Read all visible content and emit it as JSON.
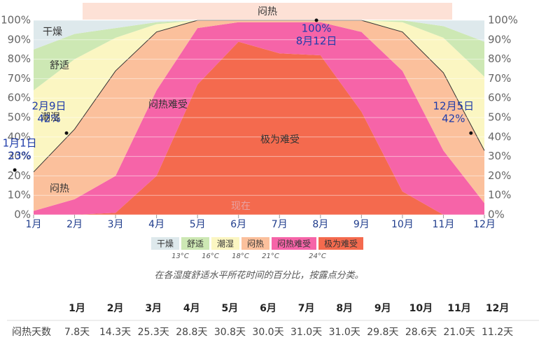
{
  "chart_data": {
    "type": "stacked_area",
    "band_label": "闷热",
    "now_label": "现在",
    "categories": [
      "1月",
      "2月",
      "3月",
      "4月",
      "5月",
      "6月",
      "7月",
      "8月",
      "9月",
      "10月",
      "11月",
      "12月"
    ],
    "series": [
      {
        "name": "极为难受",
        "color": "#f46a4e",
        "values": [
          0,
          0,
          1,
          20,
          67,
          89,
          83,
          82,
          53,
          12,
          0,
          0
        ]
      },
      {
        "name": "闷热难受",
        "color": "#f664a8",
        "values": [
          2,
          8,
          19,
          44,
          29,
          10,
          16,
          17,
          41,
          62,
          33,
          6
        ]
      },
      {
        "name": "闷热",
        "color": "#fbc09c",
        "values": [
          20,
          36,
          54,
          30,
          4,
          1,
          1,
          1,
          6,
          20,
          40,
          27
        ]
      },
      {
        "name": "潮湿",
        "color": "#fbf6c2",
        "values": [
          42,
          36,
          17,
          4,
          0,
          0,
          0,
          0,
          0,
          5,
          18,
          38
        ]
      },
      {
        "name": "舒适",
        "color": "#cde8b4",
        "values": [
          21,
          13,
          5,
          1,
          0,
          0,
          0,
          0,
          0,
          1,
          6,
          18
        ]
      },
      {
        "name": "干燥",
        "color": "#dee9ec",
        "values": [
          15,
          7,
          4,
          1,
          0,
          0,
          0,
          0,
          0,
          0,
          3,
          11
        ]
      }
    ],
    "legend_thresholds": [
      "13°C",
      "16°C",
      "18°C",
      "21°C",
      "24°C"
    ],
    "annotations": [
      {
        "date": "1月1日",
        "value": 23,
        "value_label": "23%"
      },
      {
        "date": "2月9日",
        "value": 42,
        "value_label": "42%"
      },
      {
        "date": "8月12日",
        "value": 100,
        "value_label": "100%"
      },
      {
        "date": "12月5日",
        "value": 42,
        "value_label": "42%"
      }
    ],
    "ylim": [
      0,
      100
    ],
    "yticks": [
      {
        "value": 0,
        "label": "0%"
      },
      {
        "value": 10,
        "label": "10%"
      },
      {
        "value": 20,
        "label": "20%"
      },
      {
        "value": 30,
        "label": "30%"
      },
      {
        "value": 40,
        "label": "40%"
      },
      {
        "value": 50,
        "label": "50%"
      },
      {
        "value": 60,
        "label": "60%"
      },
      {
        "value": 70,
        "label": "70%"
      },
      {
        "value": 80,
        "label": "80%"
      },
      {
        "value": 90,
        "label": "90%"
      },
      {
        "value": 100,
        "label": "100%"
      }
    ],
    "grid": true,
    "note": "在各湿度舒适水平所花时间的百分比，按露点分类。"
  },
  "table": {
    "header": [
      "1月",
      "2月",
      "3月",
      "4月",
      "5月",
      "6月",
      "7月",
      "8月",
      "9月",
      "10月",
      "11月",
      "12月"
    ],
    "rows": [
      [
        "闷热天数",
        "7.8天",
        "14.3天",
        "25.3天",
        "28.8天",
        "30.8天",
        "30.0天",
        "31.0天",
        "31.0天",
        "29.8天",
        "28.6天",
        "21.0天",
        "11.2天"
      ]
    ]
  }
}
